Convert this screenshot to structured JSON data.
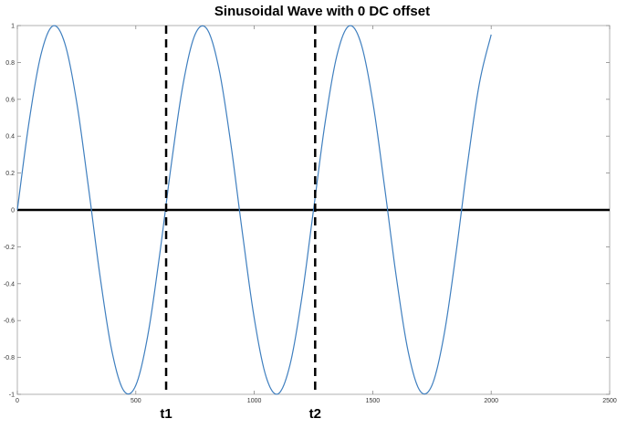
{
  "chart_data": {
    "type": "line",
    "title": "Sinusoidal Wave with 0 DC offset",
    "xlabel": "",
    "ylabel": "",
    "xlim": [
      0,
      2500
    ],
    "ylim": [
      -1,
      1
    ],
    "x_ticks": [
      0,
      500,
      1000,
      1500,
      2000,
      2500
    ],
    "x_tick_labels": [
      "0",
      "500",
      "1000",
      "1500",
      "2000",
      "2500"
    ],
    "y_ticks": [
      -1,
      -0.8,
      -0.6,
      -0.4,
      -0.2,
      0,
      0.2,
      0.4,
      0.6,
      0.8,
      1
    ],
    "y_tick_labels": [
      "-1",
      "-0.8",
      "-0.6",
      "-0.4",
      "-0.2",
      "0",
      "0.2",
      "0.4",
      "0.6",
      "0.8",
      "1"
    ],
    "grid": false,
    "series": [
      {
        "color": "#3f7fbf",
        "x": [
          0,
          50,
          100,
          150,
          200,
          250,
          300,
          350,
          400,
          450,
          500,
          550,
          600,
          650,
          700,
          750,
          800,
          850,
          900,
          950,
          1000,
          1050,
          1100,
          1150,
          1200,
          1250,
          1300,
          1350,
          1400,
          1450,
          1500,
          1550,
          1600,
          1650,
          1700,
          1750,
          1800,
          1850,
          1900,
          1950,
          2000
        ],
        "y": [
          0,
          0.482,
          0.844,
          0.998,
          0.905,
          0.588,
          0.125,
          -0.368,
          -0.771,
          -0.982,
          -0.951,
          -0.685,
          -0.249,
          0.249,
          0.685,
          0.951,
          0.982,
          0.771,
          0.368,
          -0.125,
          -0.588,
          -0.905,
          -0.998,
          -0.844,
          -0.482,
          0,
          0.482,
          0.844,
          0.998,
          0.905,
          0.588,
          0.125,
          -0.368,
          -0.771,
          -0.982,
          -0.951,
          -0.685,
          -0.249,
          0.249,
          0.685,
          0.951
        ]
      }
    ],
    "zero_line": {
      "y": 0,
      "color": "#000000"
    },
    "markers": [
      {
        "label": "t1",
        "x": 628
      },
      {
        "label": "t2",
        "x": 1257
      }
    ]
  }
}
